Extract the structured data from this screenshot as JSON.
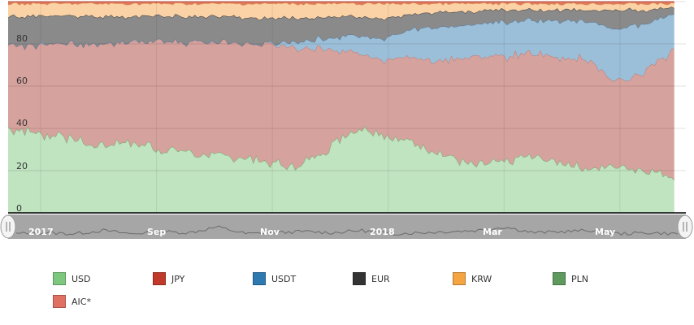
{
  "chart_data": {
    "type": "area",
    "stacked": true,
    "normalized_percent": true,
    "title": "",
    "xlabel": "",
    "ylabel": "",
    "ylim": [
      0,
      100
    ],
    "y_ticks": [
      "0",
      "20",
      "40",
      "60",
      "80"
    ],
    "x_range_months": [
      "2017-07",
      "2018-06"
    ],
    "x_tick_labels": [
      {
        "label": "2017",
        "month": 0
      },
      {
        "label": "Sep",
        "month": 2
      },
      {
        "label": "Nov",
        "month": 4
      },
      {
        "label": "2018",
        "month": 6
      },
      {
        "label": "Mar",
        "month": 8
      },
      {
        "label": "May",
        "month": 10
      }
    ],
    "x": [
      0,
      0.5,
      1,
      1.5,
      2,
      2.5,
      3,
      3.5,
      4,
      4.5,
      5,
      5.5,
      6,
      6.5,
      7,
      7.5,
      8,
      8.5,
      9,
      9.5,
      10,
      10.5,
      11,
      11.5
    ],
    "series": [
      {
        "name": "USD",
        "color": "#c0e3c0",
        "stroke": "#74a86a",
        "values": [
          40,
          38,
          36,
          32,
          34,
          31,
          29,
          27,
          26,
          24,
          22,
          30,
          40,
          37,
          33,
          28,
          22,
          24,
          27,
          24,
          21,
          22,
          20,
          17
        ]
      },
      {
        "name": "AIC*",
        "color": "#d6a29e",
        "stroke": "#b77d79",
        "values": [
          40,
          41,
          44,
          48,
          47,
          50,
          52,
          54,
          55,
          56,
          56,
          48,
          36,
          36,
          40,
          44,
          52,
          50,
          48,
          50,
          52,
          40,
          48,
          60
        ]
      },
      {
        "name": "USDT",
        "color": "#9bbfd8",
        "stroke": "#5a7a98",
        "values": [
          0,
          0,
          0,
          0,
          0,
          0,
          0,
          0,
          0,
          0,
          3,
          5,
          8,
          10,
          14,
          16,
          15,
          16,
          16,
          17,
          18,
          25,
          22,
          17
        ]
      },
      {
        "name": "EUR",
        "color": "#8a8a8a",
        "stroke": "#3a3a3a",
        "values": [
          13,
          14,
          13,
          13,
          12,
          12,
          12,
          12,
          12,
          12,
          11,
          10,
          9,
          9,
          7,
          7,
          6,
          6,
          5,
          5,
          5,
          9,
          6,
          3
        ]
      },
      {
        "name": "KRW",
        "color": "#fbd2a6",
        "stroke": "#e8a25a",
        "values": [
          6,
          6,
          6,
          6,
          6,
          6,
          6,
          6,
          6,
          7,
          7,
          6,
          6,
          7,
          5,
          4,
          4,
          3,
          3,
          3,
          3,
          3,
          3,
          2
        ]
      },
      {
        "name": "JPY",
        "color": "#e07a5f",
        "stroke": "#c8584a",
        "values": [
          1,
          1,
          1,
          1,
          1,
          1,
          1,
          1,
          1,
          1,
          1,
          1,
          1,
          1,
          1,
          1,
          1,
          1,
          1,
          1,
          1,
          1,
          1,
          1
        ]
      }
    ],
    "navigator_values": [
      3,
      4,
      3,
      6,
      3,
      5,
      4,
      9,
      3,
      4,
      5,
      4,
      6,
      3,
      4,
      5,
      6,
      9,
      4,
      5,
      6,
      3,
      4,
      3
    ],
    "legend_position": "bottom",
    "legend": [
      {
        "label": "USD",
        "color": "#7ec77e"
      },
      {
        "label": "JPY",
        "color": "#c0392b"
      },
      {
        "label": "USDT",
        "color": "#2e79b0"
      },
      {
        "label": "EUR",
        "color": "#333333"
      },
      {
        "label": "KRW",
        "color": "#f5a442"
      },
      {
        "label": "PLN",
        "color": "#5e9a5e"
      },
      {
        "label": "AIC*",
        "color": "#e07062"
      }
    ]
  }
}
